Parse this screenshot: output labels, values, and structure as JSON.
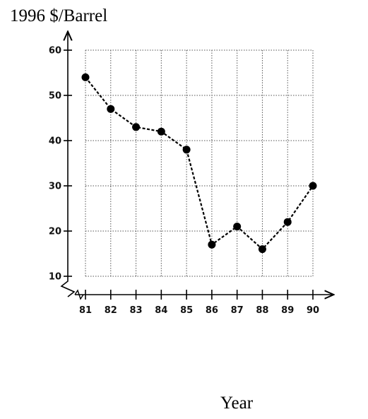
{
  "chart_data": {
    "type": "line",
    "title": "",
    "ylabel": "1996 $/Barrel",
    "xlabel": "Year",
    "x": [
      "81",
      "82",
      "83",
      "84",
      "85",
      "86",
      "87",
      "88",
      "89",
      "90"
    ],
    "y": [
      54,
      47,
      43,
      42,
      38,
      17,
      21,
      16,
      22,
      30
    ],
    "ylim": [
      10,
      60
    ],
    "yticks": [
      "10",
      "20",
      "30",
      "40",
      "50",
      "60"
    ],
    "y_axis_break": true,
    "grid": true,
    "grid_style": "dotted",
    "legend": "none",
    "marker": "filled-circle",
    "line_style": "dashed",
    "colors": {
      "line": "#000000",
      "grid": "#555555",
      "axis": "#000000"
    }
  }
}
